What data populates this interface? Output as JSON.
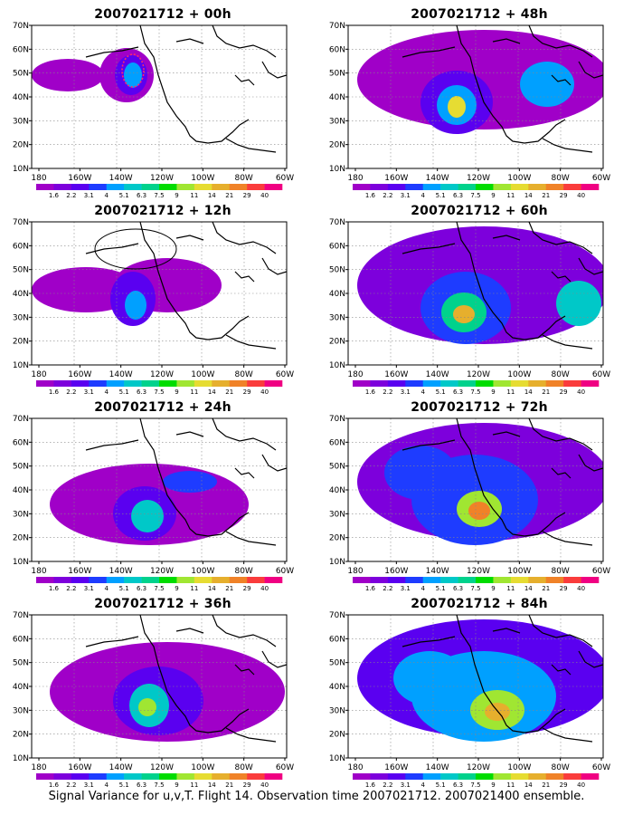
{
  "caption": "Signal Variance for u,v,T. Flight 14. Observation time 2007021712. 2007021400 ensemble.",
  "lat_ticks": [
    "70N",
    "60N",
    "50N",
    "40N",
    "30N",
    "20N",
    "10N"
  ],
  "lon_ticks": [
    "180",
    "160W",
    "140W",
    "120W",
    "100W",
    "80W",
    "60W"
  ],
  "colorbar": {
    "labels": [
      "1.6",
      "2.2",
      "3.1",
      "4",
      "5.1",
      "6.3",
      "7.5",
      "9",
      "11",
      "14",
      "21",
      "29",
      "40"
    ],
    "colors": [
      "#a000c8",
      "#7d00dc",
      "#5a00f0",
      "#1e3cff",
      "#00a0ff",
      "#00c8c8",
      "#00d28c",
      "#00dc00",
      "#a0e632",
      "#e6dc32",
      "#e6af2d",
      "#f08228",
      "#fa3c3c",
      "#f00082"
    ]
  },
  "panels": [
    {
      "title": "2007021712 + 00h"
    },
    {
      "title": "2007021712 + 48h"
    },
    {
      "title": "2007021712 + 12h"
    },
    {
      "title": "2007021712 + 60h"
    },
    {
      "title": "2007021712 + 24h"
    },
    {
      "title": "2007021712 + 72h"
    },
    {
      "title": "2007021712 + 36h"
    },
    {
      "title": "2007021712 + 84h"
    }
  ]
}
